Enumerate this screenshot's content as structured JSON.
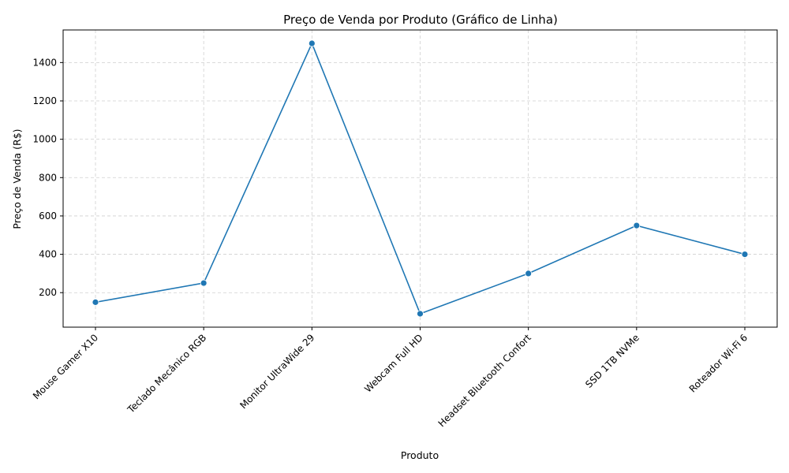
{
  "chart_data": {
    "type": "line",
    "title": "Preço de Venda por Produto (Gráfico de Linha)",
    "xlabel": "Produto",
    "ylabel": "Preço de Venda (R$)",
    "categories": [
      "Mouse Gamer X10",
      "Teclado Mecânico RGB",
      "Monitor UltraWide 29",
      "Webcam Full HD",
      "Headset Bluetooth Confort",
      "SSD 1TB NVMe",
      "Roteador Wi-Fi 6"
    ],
    "series": [
      {
        "values": [
          150,
          250,
          1500,
          90,
          300,
          550,
          400
        ],
        "color": "#1f77b4"
      }
    ],
    "ylim": [
      20,
      1570
    ],
    "yticks": [
      200,
      400,
      600,
      800,
      1000,
      1200,
      1400
    ],
    "grid": true,
    "marker": "circle"
  }
}
